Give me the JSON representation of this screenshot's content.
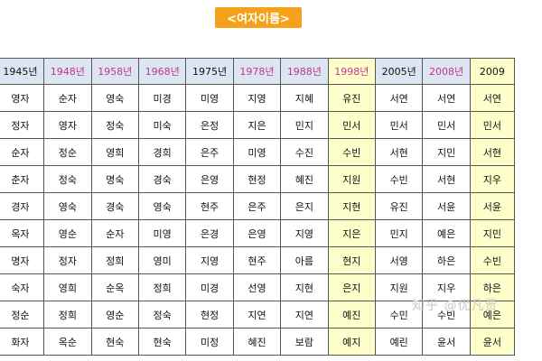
{
  "title": "<여자이름>",
  "columns": [
    {
      "label": "",
      "pink": false,
      "highlight": false
    },
    {
      "label": "1945년",
      "pink": false,
      "highlight": false
    },
    {
      "label": "1948년",
      "pink": true,
      "highlight": false
    },
    {
      "label": "1958년",
      "pink": true,
      "highlight": false
    },
    {
      "label": "1968년",
      "pink": true,
      "highlight": false
    },
    {
      "label": "1975년",
      "pink": false,
      "highlight": false
    },
    {
      "label": "1978년",
      "pink": true,
      "highlight": false
    },
    {
      "label": "1988년",
      "pink": true,
      "highlight": false
    },
    {
      "label": "1998년",
      "pink": true,
      "highlight": true
    },
    {
      "label": "2005년",
      "pink": false,
      "highlight": false
    },
    {
      "label": "2008년",
      "pink": true,
      "highlight": false
    },
    {
      "label": "2009",
      "pink": false,
      "highlight": true
    }
  ],
  "rows": [
    [
      "",
      "영자",
      "순자",
      "영숙",
      "미경",
      "미영",
      "지영",
      "지혜",
      "유진",
      "서연",
      "서연",
      "서연"
    ],
    [
      "",
      "정자",
      "영자",
      "정숙",
      "미숙",
      "은정",
      "지은",
      "민지",
      "민서",
      "민서",
      "민서",
      "민서"
    ],
    [
      "",
      "순자",
      "정순",
      "영희",
      "경희",
      "은주",
      "미영",
      "수진",
      "수빈",
      "서현",
      "지민",
      "서현"
    ],
    [
      "",
      "춘자",
      "정숙",
      "명숙",
      "경숙",
      "은영",
      "현정",
      "혜진",
      "지원",
      "수빈",
      "서현",
      "지우"
    ],
    [
      "",
      "경자",
      "영숙",
      "경숙",
      "영숙",
      "현주",
      "은주",
      "은지",
      "지현",
      "유진",
      "서윤",
      "서윤"
    ],
    [
      "",
      "옥자",
      "영순",
      "순자",
      "미영",
      "은경",
      "은영",
      "지영",
      "지은",
      "민지",
      "예은",
      "지민"
    ],
    [
      "",
      "명자",
      "정자",
      "정희",
      "영미",
      "지영",
      "현주",
      "아름",
      "현지",
      "서영",
      "하은",
      "수빈"
    ],
    [
      "",
      "숙자",
      "영희",
      "순옥",
      "정희",
      "미경",
      "선영",
      "지현",
      "은지",
      "지원",
      "지우",
      "하은"
    ],
    [
      "",
      "정순",
      "정희",
      "영순",
      "정숙",
      "현정",
      "지연",
      "지연",
      "예진",
      "수민",
      "수빈",
      "예은"
    ],
    [
      "",
      "화자",
      "옥순",
      "현숙",
      "현숙",
      "미정",
      "혜진",
      "보람",
      "예지",
      "예린",
      "윤서",
      "윤서"
    ]
  ],
  "watermark": "知乎 @优凡贾"
}
